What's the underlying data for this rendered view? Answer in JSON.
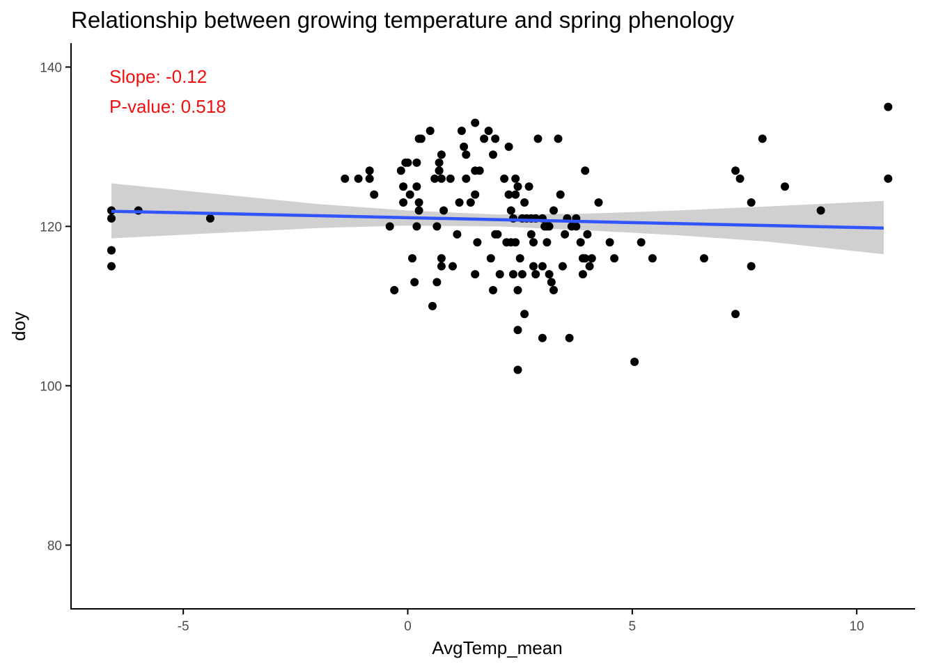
{
  "chart_data": {
    "type": "scatter",
    "title": "Relationship between growing temperature and spring phenology",
    "xlabel": "AvgTemp_mean",
    "ylabel": "doy",
    "xlim": [
      -7.5,
      11.3
    ],
    "ylim": [
      72,
      143
    ],
    "x_ticks": [
      -5,
      0,
      5,
      10
    ],
    "y_ticks": [
      80,
      100,
      120,
      140
    ],
    "grid": false,
    "legend": "none",
    "point_color": "#000000",
    "line_color": "#3355ff",
    "band_color": "#d0d0d0",
    "annotation_color": "#ee1111",
    "annotations": [
      "Slope: -0.12",
      "P-value: 0.518"
    ],
    "fit": {
      "x": [
        -6.6,
        10.6
      ],
      "y": [
        121.9,
        119.8
      ],
      "band_x": [
        -6.6,
        -2,
        0,
        2,
        4,
        6,
        8,
        10.6
      ],
      "band_upper": [
        125.4,
        122.8,
        122.0,
        121.5,
        121.6,
        122.0,
        122.5,
        123.2
      ],
      "band_lower": [
        118.5,
        119.8,
        120.1,
        120.0,
        119.5,
        118.9,
        118.1,
        116.5
      ]
    },
    "points": [
      {
        "x": -6.6,
        "y": 122
      },
      {
        "x": -6.6,
        "y": 121
      },
      {
        "x": -6.6,
        "y": 117
      },
      {
        "x": -6.6,
        "y": 117
      },
      {
        "x": -6.6,
        "y": 115
      },
      {
        "x": -6.0,
        "y": 122
      },
      {
        "x": -4.4,
        "y": 121
      },
      {
        "x": -1.4,
        "y": 126
      },
      {
        "x": -1.1,
        "y": 126
      },
      {
        "x": -0.85,
        "y": 127
      },
      {
        "x": -0.85,
        "y": 126
      },
      {
        "x": -0.75,
        "y": 124
      },
      {
        "x": -0.4,
        "y": 120
      },
      {
        "x": -0.3,
        "y": 112
      },
      {
        "x": -0.15,
        "y": 127
      },
      {
        "x": -0.1,
        "y": 125
      },
      {
        "x": -0.05,
        "y": 128
      },
      {
        "x": 0.0,
        "y": 128
      },
      {
        "x": -0.1,
        "y": 123
      },
      {
        "x": 0.05,
        "y": 124
      },
      {
        "x": 0.1,
        "y": 116
      },
      {
        "x": 0.15,
        "y": 113
      },
      {
        "x": 0.2,
        "y": 128
      },
      {
        "x": 0.2,
        "y": 125
      },
      {
        "x": 0.2,
        "y": 120
      },
      {
        "x": 0.25,
        "y": 123
      },
      {
        "x": 0.25,
        "y": 122
      },
      {
        "x": 0.25,
        "y": 131
      },
      {
        "x": 0.3,
        "y": 131
      },
      {
        "x": 0.5,
        "y": 132
      },
      {
        "x": 0.55,
        "y": 110
      },
      {
        "x": 0.6,
        "y": 126
      },
      {
        "x": 0.65,
        "y": 120
      },
      {
        "x": 0.65,
        "y": 113
      },
      {
        "x": 0.7,
        "y": 127
      },
      {
        "x": 0.7,
        "y": 128
      },
      {
        "x": 0.7,
        "y": 127
      },
      {
        "x": 0.75,
        "y": 129
      },
      {
        "x": 0.75,
        "y": 116
      },
      {
        "x": 0.75,
        "y": 115
      },
      {
        "x": 0.75,
        "y": 126
      },
      {
        "x": 0.8,
        "y": 122
      },
      {
        "x": 0.95,
        "y": 126
      },
      {
        "x": 1.0,
        "y": 115
      },
      {
        "x": 1.1,
        "y": 119
      },
      {
        "x": 1.15,
        "y": 123
      },
      {
        "x": 1.2,
        "y": 132
      },
      {
        "x": 1.25,
        "y": 130
      },
      {
        "x": 1.3,
        "y": 126
      },
      {
        "x": 1.3,
        "y": 129
      },
      {
        "x": 1.4,
        "y": 123
      },
      {
        "x": 1.5,
        "y": 133
      },
      {
        "x": 1.5,
        "y": 127
      },
      {
        "x": 1.5,
        "y": 124
      },
      {
        "x": 1.5,
        "y": 114
      },
      {
        "x": 1.55,
        "y": 118
      },
      {
        "x": 1.6,
        "y": 127
      },
      {
        "x": 1.7,
        "y": 131
      },
      {
        "x": 1.8,
        "y": 132
      },
      {
        "x": 1.85,
        "y": 116
      },
      {
        "x": 1.9,
        "y": 129
      },
      {
        "x": 1.9,
        "y": 112
      },
      {
        "x": 1.95,
        "y": 131
      },
      {
        "x": 1.95,
        "y": 119
      },
      {
        "x": 2.0,
        "y": 119
      },
      {
        "x": 2.05,
        "y": 114
      },
      {
        "x": 2.15,
        "y": 126
      },
      {
        "x": 2.2,
        "y": 118
      },
      {
        "x": 2.25,
        "y": 124
      },
      {
        "x": 2.25,
        "y": 130
      },
      {
        "x": 2.3,
        "y": 118
      },
      {
        "x": 2.3,
        "y": 122
      },
      {
        "x": 2.35,
        "y": 114
      },
      {
        "x": 2.35,
        "y": 121
      },
      {
        "x": 2.4,
        "y": 118
      },
      {
        "x": 2.4,
        "y": 126
      },
      {
        "x": 2.4,
        "y": 124
      },
      {
        "x": 2.45,
        "y": 125
      },
      {
        "x": 2.45,
        "y": 112
      },
      {
        "x": 2.45,
        "y": 107
      },
      {
        "x": 2.45,
        "y": 102
      },
      {
        "x": 2.5,
        "y": 116
      },
      {
        "x": 2.55,
        "y": 114
      },
      {
        "x": 2.55,
        "y": 121
      },
      {
        "x": 2.6,
        "y": 123
      },
      {
        "x": 2.6,
        "y": 109
      },
      {
        "x": 2.65,
        "y": 121
      },
      {
        "x": 2.7,
        "y": 125
      },
      {
        "x": 2.75,
        "y": 119
      },
      {
        "x": 2.75,
        "y": 121
      },
      {
        "x": 2.8,
        "y": 118
      },
      {
        "x": 2.8,
        "y": 115
      },
      {
        "x": 2.85,
        "y": 121
      },
      {
        "x": 2.85,
        "y": 114
      },
      {
        "x": 2.9,
        "y": 131
      },
      {
        "x": 3.0,
        "y": 106
      },
      {
        "x": 3.0,
        "y": 115
      },
      {
        "x": 3.0,
        "y": 121
      },
      {
        "x": 3.05,
        "y": 120
      },
      {
        "x": 3.1,
        "y": 120
      },
      {
        "x": 3.1,
        "y": 118
      },
      {
        "x": 3.15,
        "y": 120
      },
      {
        "x": 3.15,
        "y": 114
      },
      {
        "x": 3.2,
        "y": 113
      },
      {
        "x": 3.25,
        "y": 122
      },
      {
        "x": 3.25,
        "y": 112
      },
      {
        "x": 3.35,
        "y": 131
      },
      {
        "x": 3.4,
        "y": 124
      },
      {
        "x": 3.45,
        "y": 115
      },
      {
        "x": 3.5,
        "y": 119
      },
      {
        "x": 3.55,
        "y": 121
      },
      {
        "x": 3.6,
        "y": 106
      },
      {
        "x": 3.65,
        "y": 120
      },
      {
        "x": 3.75,
        "y": 121
      },
      {
        "x": 3.75,
        "y": 120
      },
      {
        "x": 3.85,
        "y": 118
      },
      {
        "x": 3.9,
        "y": 116
      },
      {
        "x": 3.9,
        "y": 114
      },
      {
        "x": 3.95,
        "y": 127
      },
      {
        "x": 3.95,
        "y": 116
      },
      {
        "x": 4.0,
        "y": 119
      },
      {
        "x": 4.05,
        "y": 115
      },
      {
        "x": 4.1,
        "y": 116
      },
      {
        "x": 4.25,
        "y": 123
      },
      {
        "x": 4.5,
        "y": 118
      },
      {
        "x": 4.6,
        "y": 116
      },
      {
        "x": 5.05,
        "y": 103
      },
      {
        "x": 5.2,
        "y": 118
      },
      {
        "x": 5.45,
        "y": 116
      },
      {
        "x": 6.6,
        "y": 116
      },
      {
        "x": 7.3,
        "y": 127
      },
      {
        "x": 7.3,
        "y": 109
      },
      {
        "x": 7.4,
        "y": 126
      },
      {
        "x": 7.65,
        "y": 123
      },
      {
        "x": 7.65,
        "y": 115
      },
      {
        "x": 7.9,
        "y": 131
      },
      {
        "x": 8.4,
        "y": 125
      },
      {
        "x": 9.2,
        "y": 122
      },
      {
        "x": 10.7,
        "y": 135
      },
      {
        "x": 10.7,
        "y": 126
      }
    ]
  }
}
